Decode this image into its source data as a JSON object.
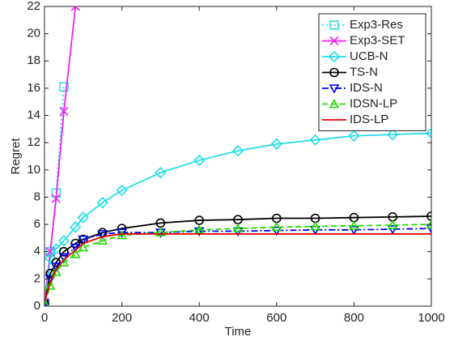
{
  "chart_data": {
    "type": "line",
    "xlabel": "Time",
    "ylabel": "Regret",
    "x": [
      0,
      15,
      30,
      50,
      80,
      100,
      150,
      200,
      300,
      400,
      500,
      600,
      700,
      800,
      900,
      1000
    ],
    "xlim": [
      0,
      1000
    ],
    "xticks": [
      0,
      200,
      400,
      600,
      800,
      1000
    ],
    "ylim": [
      0,
      22
    ],
    "yticks": [
      0,
      2,
      4,
      6,
      8,
      10,
      12,
      14,
      16,
      18,
      20,
      22
    ],
    "grid": false,
    "legend": "upper right",
    "series": [
      {
        "name": "Exp3-Res",
        "color": "#33ddee",
        "marker": "square",
        "linestyle": "dotted",
        "values": [
          0,
          4.0,
          8.3,
          16.1,
          null,
          null,
          null,
          null,
          null,
          null,
          null,
          null,
          null,
          null,
          null,
          null
        ]
      },
      {
        "name": "Exp3-SET",
        "color": "#ee22ee",
        "marker": "x",
        "linestyle": "solid",
        "values": [
          0.3,
          4.0,
          7.9,
          14.3,
          22,
          null,
          null,
          null,
          null,
          null,
          null,
          null,
          null,
          null,
          null,
          null
        ]
      },
      {
        "name": "UCB-N",
        "color": "#22dde6",
        "marker": "diamond",
        "linestyle": "solid",
        "values": [
          0,
          3.5,
          4.2,
          4.8,
          5.8,
          6.5,
          7.6,
          8.5,
          9.8,
          10.7,
          11.4,
          11.9,
          12.2,
          12.5,
          12.6,
          12.7
        ]
      },
      {
        "name": "TS-N",
        "color": "#000000",
        "marker": "circle",
        "linestyle": "solid",
        "values": [
          0.2,
          2.4,
          3.2,
          4.0,
          4.6,
          4.9,
          5.4,
          5.7,
          6.1,
          6.3,
          6.35,
          6.45,
          6.45,
          6.5,
          6.55,
          6.6
        ]
      },
      {
        "name": "IDS-N",
        "color": "#0000ee",
        "marker": "triangle-down",
        "linestyle": "dashdot",
        "values": [
          0.2,
          2.0,
          2.9,
          3.6,
          4.3,
          4.9,
          5.3,
          5.4,
          5.4,
          5.5,
          5.5,
          5.55,
          5.6,
          5.6,
          5.65,
          5.7
        ]
      },
      {
        "name": "IDSN-LP",
        "color": "#22dd00",
        "marker": "triangle-up",
        "linestyle": "dashed",
        "values": [
          0.2,
          1.5,
          2.5,
          3.2,
          3.8,
          4.3,
          4.8,
          5.2,
          5.4,
          5.6,
          5.7,
          5.8,
          5.85,
          5.9,
          5.95,
          6.0
        ]
      },
      {
        "name": "IDS-LP",
        "color": "#dd0000",
        "marker": "none",
        "linestyle": "solid",
        "values": [
          0.3,
          1.8,
          2.7,
          3.4,
          4.1,
          4.6,
          5.1,
          5.3,
          5.3,
          5.3,
          5.3,
          5.3,
          5.3,
          5.3,
          5.3,
          5.3
        ]
      }
    ]
  }
}
